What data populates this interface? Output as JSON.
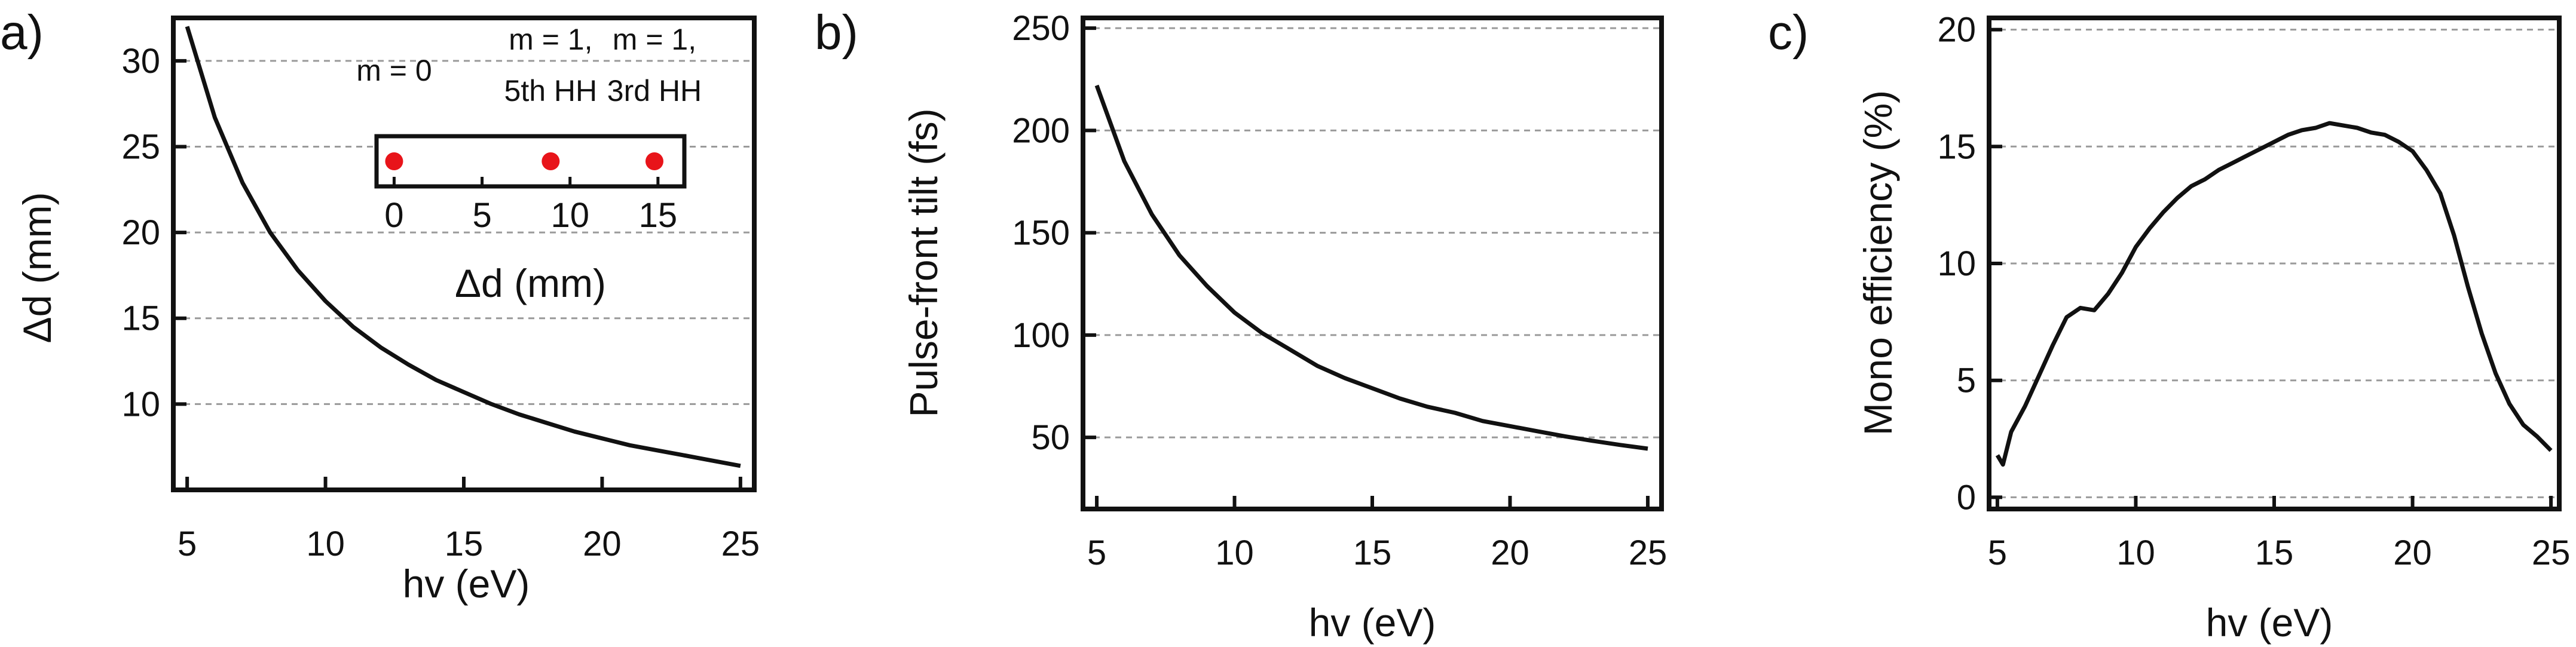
{
  "colors": {
    "line": "#111111",
    "grid": "#9a9a9a",
    "marker": "#e8141a",
    "frame": "#111111"
  },
  "chart_data": [
    {
      "type": "line",
      "panel_label": "a)",
      "xlabel": "hv (eV)",
      "ylabel": "Δd (mm)",
      "xlim": [
        4.5,
        25.5
      ],
      "ylim": [
        5,
        32.5
      ],
      "xticks": [
        5,
        10,
        15,
        20,
        25
      ],
      "yticks": [
        10,
        15,
        20,
        25,
        30
      ],
      "grid": "horizontal dashed",
      "series": [
        {
          "x": [
            5,
            6,
            7,
            8,
            9,
            10,
            11,
            12,
            13,
            14,
            15,
            16,
            17,
            18,
            19,
            20,
            21,
            22,
            23,
            24,
            25
          ],
          "y": [
            32.0,
            26.7,
            22.9,
            20.0,
            17.8,
            16.0,
            14.5,
            13.3,
            12.3,
            11.4,
            10.7,
            10.0,
            9.4,
            8.9,
            8.4,
            8.0,
            7.6,
            7.3,
            7.0,
            6.7,
            6.4
          ]
        }
      ],
      "inset": {
        "xlabel": "Δd (mm)",
        "xticks": [
          0,
          5,
          10,
          15
        ],
        "xlim": [
          -1,
          16.5
        ],
        "points": [
          {
            "x": 0,
            "label_lines": [
              "m = 0"
            ]
          },
          {
            "x": 8.9,
            "label_lines": [
              "m = 1,",
              "5th HH"
            ]
          },
          {
            "x": 14.8,
            "label_lines": [
              "m = 1,",
              "3rd HH"
            ]
          }
        ]
      }
    },
    {
      "type": "line",
      "panel_label": "b)",
      "xlabel": "hv (eV)",
      "ylabel": "Pulse-front tilt (fs)",
      "xlim": [
        4.5,
        25.5
      ],
      "ylim": [
        15,
        255
      ],
      "xticks": [
        5,
        10,
        15,
        20,
        25
      ],
      "yticks": [
        50,
        100,
        150,
        200,
        250
      ],
      "grid": "horizontal dashed",
      "series": [
        {
          "x": [
            5,
            6,
            7,
            8,
            9,
            10,
            11,
            12,
            13,
            14,
            15,
            16,
            17,
            18,
            19,
            20,
            21,
            22,
            23,
            24,
            25
          ],
          "y": [
            222,
            185,
            159,
            139,
            124,
            111,
            101,
            93,
            85,
            79,
            74,
            69,
            65,
            62,
            58,
            55.5,
            53,
            50.5,
            48.3,
            46.3,
            44.5
          ]
        }
      ]
    },
    {
      "type": "line",
      "panel_label": "c)",
      "xlabel": "hv (eV)",
      "ylabel": "Mono efficiency (%)",
      "xlim": [
        4.7,
        25.3
      ],
      "ylim": [
        -0.5,
        20.5
      ],
      "xticks": [
        5,
        10,
        15,
        20,
        25
      ],
      "yticks": [
        0,
        5,
        10,
        15,
        20
      ],
      "grid": "horizontal dashed",
      "series": [
        {
          "x": [
            5.0,
            5.2,
            5.5,
            6.0,
            6.5,
            7.0,
            7.5,
            8.0,
            8.5,
            9.0,
            9.5,
            10.0,
            10.5,
            11.0,
            11.5,
            12.0,
            12.5,
            13.0,
            13.5,
            14.0,
            14.5,
            15.0,
            15.5,
            16.0,
            16.5,
            17.0,
            17.5,
            18.0,
            18.5,
            19.0,
            19.5,
            20.0,
            20.5,
            21.0,
            21.5,
            22.0,
            22.5,
            23.0,
            23.5,
            24.0,
            24.5,
            25.0
          ],
          "y": [
            1.8,
            1.4,
            2.8,
            3.9,
            5.2,
            6.5,
            7.7,
            8.1,
            8.0,
            8.7,
            9.6,
            10.7,
            11.5,
            12.2,
            12.8,
            13.3,
            13.6,
            14.0,
            14.3,
            14.6,
            14.9,
            15.2,
            15.5,
            15.7,
            15.8,
            16.0,
            15.9,
            15.8,
            15.6,
            15.5,
            15.2,
            14.8,
            14.0,
            13.0,
            11.2,
            9.0,
            7.0,
            5.3,
            4.0,
            3.1,
            2.6,
            2.0
          ]
        }
      ]
    }
  ]
}
